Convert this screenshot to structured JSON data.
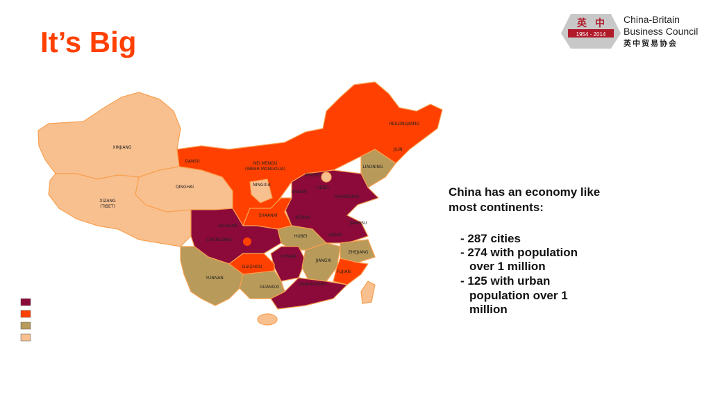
{
  "header": {
    "title": "It’s Big"
  },
  "logo": {
    "emblem_left": "英",
    "emblem_right": "中",
    "years": "1954 - 2014",
    "name_line1": "China-Britain",
    "name_line2": "Business Council",
    "chinese_name": "英中贸易协会"
  },
  "map": {
    "labels": [
      "HEILONGJIANG",
      "JILIN",
      "LIAONING",
      "XINJIANG",
      "GANSU",
      "NEI MENGU",
      "(INNER MONGOLIA)",
      "BEIJING",
      "HEBEI",
      "NINGXIA",
      "QINGHAI",
      "SHANXI",
      "SHANDONG",
      "XIZANG",
      "(TIBET)",
      "SHAANXI",
      "HENAN",
      "JIANGSU",
      "SICHUAN",
      "ANHUI",
      "HUBEI",
      "CHONGQING",
      "HUNAN",
      "ZHEJIANG",
      "JIANGXI",
      "GUIZHOU",
      "FUJIAN",
      "YUNNAN",
      "GUANGXI",
      "GUANGDONG"
    ]
  },
  "text": {
    "heading_lines": [
      "China has an economy like",
      "most continents:"
    ],
    "bullet_lines": [
      "- 287 cities",
      "- 274 with population",
      "over 1 million",
      "- 125 with urban",
      "population over 1",
      "million"
    ]
  }
}
